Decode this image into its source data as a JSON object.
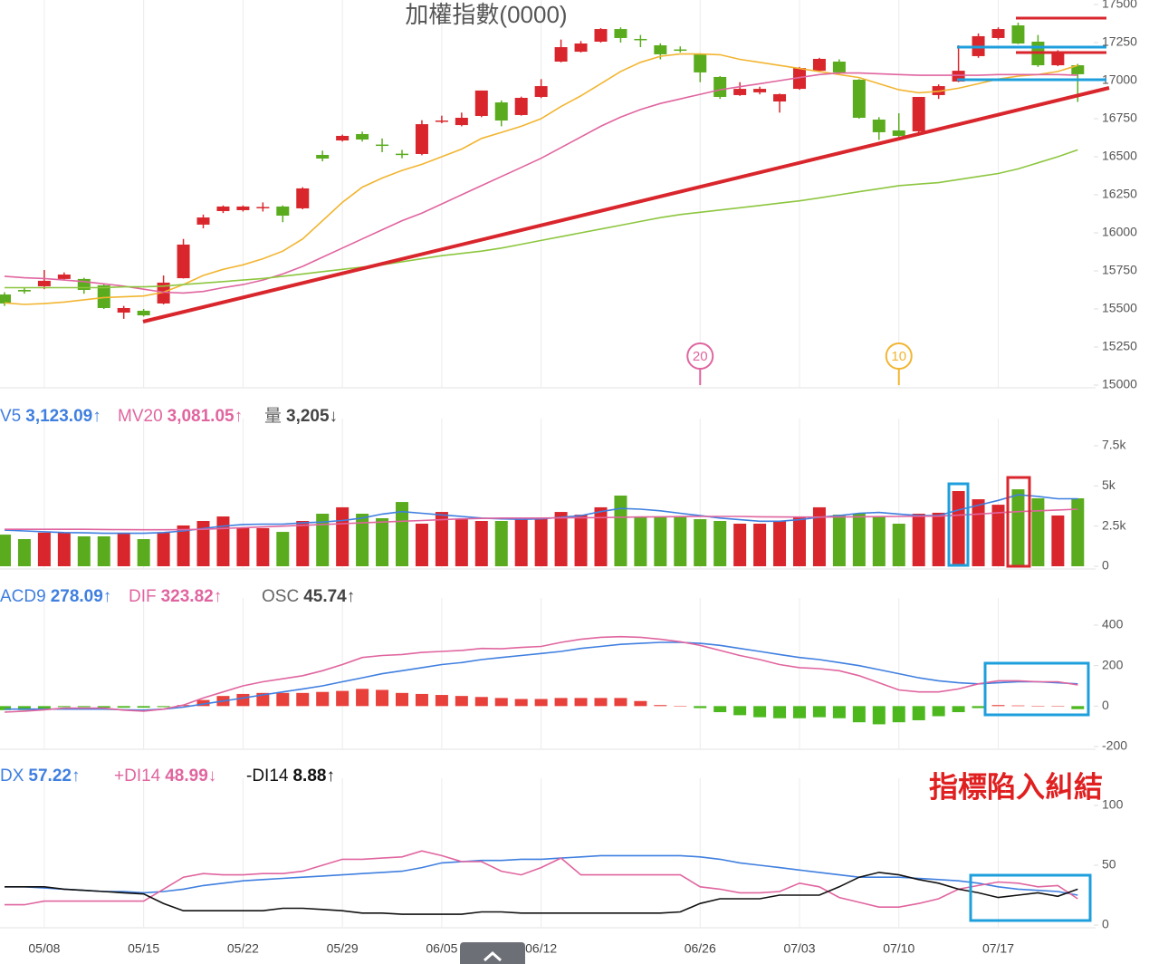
{
  "chart_data": [
    {
      "type": "candlestick",
      "title": "加權指數(0000)",
      "ylim": [
        15000,
        17500
      ],
      "yticks": [
        15000,
        15250,
        15500,
        15750,
        16000,
        16250,
        16500,
        16750,
        17000,
        17250,
        17500
      ],
      "up_color": "#d9262c",
      "down_color": "#5aac1e",
      "open": [
        15595,
        15625,
        15649,
        15697,
        15697,
        15655,
        15476,
        15488,
        15536,
        15702,
        16054,
        16143,
        16149,
        16165,
        16173,
        16161,
        16512,
        16607,
        16649,
        16580,
        16520,
        16518,
        16735,
        16708,
        16768,
        16857,
        16774,
        16893,
        17125,
        17190,
        17256,
        17339,
        17274,
        17232,
        17205,
        17173,
        17024,
        16905,
        16923,
        16863,
        16946,
        17065,
        17125,
        17006,
        16744,
        16673,
        16667,
        16905,
        16994,
        17161,
        17280,
        17363,
        17256,
        17101,
        17101
      ],
      "high": [
        15610,
        15640,
        15756,
        15740,
        15705,
        15665,
        15520,
        15500,
        15720,
        15960,
        16120,
        16180,
        16180,
        16200,
        16180,
        16300,
        16540,
        16645,
        16665,
        16620,
        16545,
        16740,
        16770,
        16790,
        16935,
        16870,
        16895,
        17010,
        17270,
        17260,
        17345,
        17350,
        17300,
        17245,
        17225,
        17180,
        17030,
        16990,
        16960,
        16915,
        17090,
        17150,
        17140,
        17010,
        16760,
        16786,
        16893,
        16975,
        17232,
        17310,
        17350,
        17381,
        17300,
        17200,
        17110
      ],
      "low": [
        15520,
        15600,
        15630,
        15690,
        15600,
        15500,
        15435,
        15450,
        15530,
        15700,
        16030,
        16130,
        16140,
        16140,
        16070,
        16155,
        16470,
        16600,
        16600,
        16530,
        16490,
        16510,
        16720,
        16700,
        16760,
        16700,
        16770,
        16885,
        17120,
        17185,
        17250,
        17250,
        17220,
        17140,
        17185,
        16990,
        16880,
        16900,
        16910,
        16790,
        16940,
        17060,
        17040,
        16750,
        16610,
        16630,
        16660,
        16880,
        16990,
        17150,
        17270,
        17240,
        17090,
        17095,
        16860
      ],
      "close": [
        15536,
        15615,
        15685,
        15726,
        15625,
        15506,
        15506,
        15458,
        15673,
        15923,
        16101,
        16173,
        16173,
        16170,
        16113,
        16292,
        16488,
        16637,
        16613,
        16577,
        16518,
        16714,
        16738,
        16756,
        16935,
        16738,
        16887,
        16964,
        17220,
        17244,
        17339,
        17280,
        17270,
        17173,
        17202,
        17054,
        16893,
        16946,
        16946,
        16911,
        17083,
        17143,
        17054,
        16756,
        16661,
        16637,
        16893,
        16964,
        17065,
        17292,
        17339,
        17244,
        17101,
        17185,
        17042
      ],
      "series": [
        {
          "color": "#f2b531",
          "values": [
            15540,
            15530,
            15535,
            15545,
            15560,
            15575,
            15580,
            15585,
            15610,
            15660,
            15720,
            15760,
            15790,
            15830,
            15880,
            15960,
            16080,
            16200,
            16300,
            16360,
            16410,
            16450,
            16500,
            16550,
            16620,
            16660,
            16700,
            16750,
            16830,
            16900,
            16980,
            17060,
            17120,
            17160,
            17175,
            17175,
            17170,
            17140,
            17120,
            17100,
            17080,
            17060,
            17040,
            17020,
            16980,
            16940,
            16920,
            16930,
            16950,
            16980,
            17010,
            17030,
            17040,
            17060,
            17100
          ]
        },
        {
          "color": "#e0659f",
          "values": [
            15715,
            15705,
            15700,
            15690,
            15680,
            15665,
            15650,
            15630,
            15610,
            15605,
            15615,
            15640,
            15660,
            15690,
            15730,
            15780,
            15840,
            15900,
            15960,
            16020,
            16080,
            16130,
            16190,
            16250,
            16310,
            16370,
            16430,
            16490,
            16560,
            16630,
            16700,
            16760,
            16810,
            16850,
            16880,
            16910,
            16940,
            16960,
            16980,
            17000,
            17020,
            17040,
            17050,
            17050,
            17045,
            17040,
            17035,
            17035,
            17035,
            17035,
            17040,
            17040,
            17040,
            17040,
            17035
          ]
        },
        {
          "color": "#8dc63f",
          "values": [
            15640,
            15640,
            15640,
            15640,
            15640,
            15640,
            15645,
            15645,
            15650,
            15660,
            15670,
            15680,
            15690,
            15700,
            15715,
            15730,
            15745,
            15760,
            15775,
            15790,
            15810,
            15830,
            15850,
            15865,
            15880,
            15900,
            15925,
            15950,
            15975,
            16000,
            16025,
            16050,
            16075,
            16100,
            16120,
            16135,
            16150,
            16165,
            16180,
            16195,
            16210,
            16230,
            16250,
            16270,
            16290,
            16310,
            16320,
            16330,
            16350,
            16370,
            16390,
            16420,
            16460,
            16500,
            16545
          ]
        }
      ],
      "markers": [
        {
          "label": "20",
          "color": "#e0659f",
          "category": "06/26"
        },
        {
          "label": "10",
          "color": "#f2b531",
          "category": "07/10"
        }
      ]
    },
    {
      "type": "volume",
      "ylim": [
        0,
        7500
      ],
      "yticks": [
        0,
        {
          "value": 2500,
          "label": "2.5k"
        },
        {
          "value": 5000,
          "label": "5k"
        },
        {
          "value": 7500,
          "label": "7.5k"
        }
      ],
      "bar_name": "量",
      "bar_readout": "3,205↓",
      "values": [
        1970,
        1690,
        2090,
        2090,
        1860,
        1860,
        2090,
        1690,
        2090,
        2540,
        2820,
        3100,
        2370,
        2370,
        2140,
        2820,
        3270,
        3670,
        3270,
        2990,
        4000,
        2650,
        3380,
        2930,
        2820,
        2820,
        2930,
        2990,
        3380,
        3210,
        3670,
        4400,
        3100,
        3100,
        3100,
        2930,
        2820,
        2650,
        2650,
        2820,
        3100,
        3670,
        3210,
        3270,
        3100,
        2650,
        3270,
        3330,
        4680,
        4170,
        3830,
        4790,
        4230,
        3160,
        4230
      ],
      "series": [
        {
          "name": "V5",
          "readout": "3,123.09↑",
          "color": "#3f7fe0",
          "values": [
            2250,
            2200,
            2150,
            2100,
            2080,
            2050,
            2050,
            2050,
            2100,
            2200,
            2350,
            2500,
            2600,
            2620,
            2620,
            2700,
            2750,
            2850,
            3000,
            3250,
            3400,
            3300,
            3200,
            3100,
            3000,
            2950,
            2920,
            2950,
            3050,
            3150,
            3400,
            3600,
            3550,
            3450,
            3300,
            3150,
            3000,
            2900,
            2800,
            2800,
            2900,
            3050,
            3150,
            3300,
            3350,
            3250,
            3150,
            3150,
            3500,
            3800,
            4100,
            4450,
            4350,
            4200,
            4200
          ]
        },
        {
          "name": "MV20",
          "readout": "3,081.05↑",
          "color": "#e0659f",
          "values": [
            2300,
            2300,
            2300,
            2300,
            2300,
            2290,
            2280,
            2270,
            2270,
            2280,
            2300,
            2350,
            2400,
            2450,
            2500,
            2550,
            2600,
            2650,
            2700,
            2750,
            2800,
            2850,
            2900,
            2950,
            2980,
            3000,
            3000,
            3000,
            3010,
            3020,
            3030,
            3050,
            3070,
            3080,
            3090,
            3100,
            3100,
            3100,
            3080,
            3070,
            3060,
            3060,
            3070,
            3080,
            3090,
            3100,
            3110,
            3120,
            3180,
            3250,
            3330,
            3400,
            3450,
            3500,
            3550
          ]
        }
      ]
    },
    {
      "type": "macd",
      "ylim": [
        -200,
        400
      ],
      "yticks": [
        -200,
        0,
        200,
        400
      ],
      "bar_name": "OSC",
      "bar_readout": "45.74↑",
      "up_color": "#e8403a",
      "down_color": "#4cb81e",
      "values": [
        -20,
        -20,
        -15,
        -5,
        -5,
        -8,
        -8,
        -8,
        -5,
        5,
        30,
        50,
        60,
        65,
        65,
        65,
        70,
        75,
        85,
        80,
        65,
        60,
        55,
        50,
        45,
        40,
        35,
        35,
        40,
        40,
        40,
        40,
        25,
        5,
        0,
        -10,
        -30,
        -45,
        -55,
        -60,
        -60,
        -55,
        -60,
        -80,
        -90,
        -80,
        -70,
        -50,
        -30,
        -10,
        5,
        3,
        0,
        0,
        -15
      ],
      "series": [
        {
          "name": "ACD9",
          "readout": "278.09↑",
          "color": "#3f7fe0",
          "values": [
            -15,
            -15,
            -15,
            -15,
            -15,
            -15,
            -18,
            -20,
            -15,
            -5,
            10,
            25,
            40,
            55,
            70,
            85,
            100,
            120,
            140,
            160,
            175,
            190,
            205,
            215,
            230,
            240,
            250,
            260,
            270,
            285,
            295,
            305,
            310,
            315,
            315,
            310,
            300,
            285,
            270,
            255,
            240,
            230,
            215,
            200,
            180,
            160,
            140,
            125,
            115,
            110,
            115,
            120,
            120,
            115,
            110
          ]
        },
        {
          "name": "DIF",
          "readout": "323.82↑",
          "color": "#e0659f",
          "values": [
            -30,
            -25,
            -18,
            -10,
            -10,
            -10,
            -20,
            -25,
            -15,
            5,
            40,
            70,
            100,
            120,
            135,
            150,
            175,
            205,
            240,
            250,
            255,
            265,
            270,
            275,
            285,
            283,
            290,
            295,
            315,
            330,
            340,
            343,
            340,
            330,
            318,
            300,
            275,
            250,
            230,
            205,
            190,
            185,
            175,
            150,
            115,
            80,
            70,
            70,
            85,
            110,
            125,
            125,
            120,
            120,
            105
          ]
        }
      ]
    },
    {
      "type": "line",
      "ylim": [
        0,
        100
      ],
      "yticks": [
        0,
        50,
        100
      ],
      "categories": [
        null,
        null,
        "05/08",
        null,
        null,
        null,
        null,
        "05/15",
        null,
        null,
        null,
        null,
        "05/22",
        null,
        null,
        null,
        null,
        "05/29",
        null,
        null,
        null,
        null,
        "06/05",
        null,
        null,
        null,
        null,
        "06/12",
        null,
        null,
        null,
        null,
        null,
        null,
        null,
        "06/26",
        null,
        null,
        null,
        null,
        "07/03",
        null,
        null,
        null,
        null,
        "07/10",
        null,
        null,
        null,
        null,
        "07/17",
        null,
        null,
        null,
        null
      ],
      "annotation": "指標陷入糾結",
      "series": [
        {
          "name": "DX",
          "readout": "57.22↑",
          "color": "#3f7fe0",
          "values": [
            32,
            32,
            31,
            30,
            29,
            28,
            28,
            27,
            28,
            30,
            33,
            35,
            37,
            38,
            39,
            40,
            41,
            42,
            43,
            44,
            45,
            48,
            52,
            53,
            54,
            54,
            55,
            55,
            56,
            57,
            58,
            58,
            58,
            58,
            58,
            57,
            55,
            52,
            50,
            48,
            46,
            44,
            42,
            40,
            40,
            40,
            39,
            38,
            37,
            35,
            32,
            30,
            29,
            28,
            25
          ]
        },
        {
          "name": "+DI14",
          "readout": "48.99↓",
          "color": "#e0659f",
          "values": [
            17,
            17,
            20,
            20,
            20,
            20,
            20,
            20,
            30,
            40,
            43,
            42,
            42,
            43,
            43,
            45,
            50,
            55,
            55,
            56,
            57,
            62,
            58,
            53,
            53,
            45,
            42,
            48,
            56,
            42,
            42,
            42,
            42,
            42,
            42,
            32,
            30,
            27,
            27,
            28,
            35,
            32,
            23,
            19,
            15,
            15,
            18,
            22,
            30,
            33,
            36,
            35,
            32,
            33,
            22
          ]
        },
        {
          "name": "-DI14",
          "readout": "8.88↑",
          "color": "#111111",
          "values": [
            32,
            32,
            32,
            30,
            29,
            28,
            27,
            26,
            18,
            12,
            12,
            12,
            12,
            12,
            14,
            14,
            13,
            12,
            10,
            10,
            9,
            9,
            9,
            9,
            11,
            11,
            10,
            10,
            10,
            10,
            10,
            10,
            10,
            10,
            11,
            18,
            22,
            22,
            22,
            25,
            25,
            25,
            32,
            40,
            44,
            42,
            38,
            35,
            30,
            27,
            23,
            25,
            27,
            24,
            30
          ]
        }
      ]
    }
  ]
}
